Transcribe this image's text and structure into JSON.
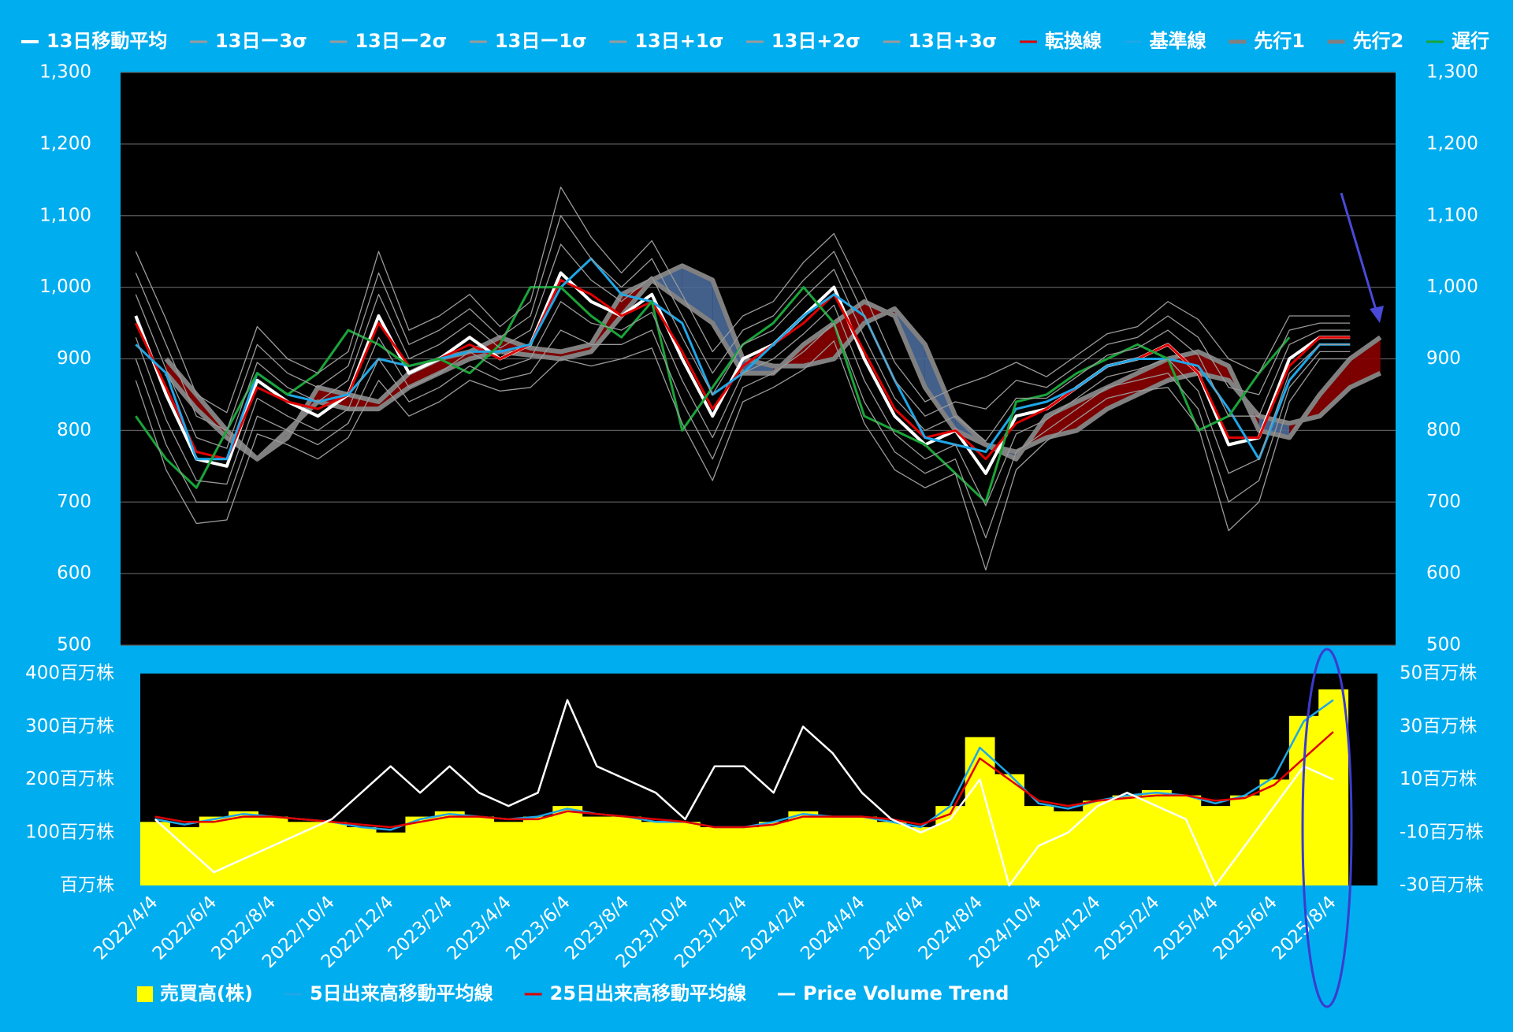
{
  "chart_data": [
    {
      "type": "ichimoku",
      "ylim": [
        500,
        1300
      ],
      "yticks": [
        500,
        600,
        700,
        800,
        900,
        {
          "value": 1000,
          "label": "1,000"
        },
        {
          "value": 1100,
          "label": "1,100"
        },
        {
          "value": 1200,
          "label": "1,200"
        },
        {
          "value": 1300,
          "label": "1,300"
        }
      ],
      "grid": true,
      "cloud_up_color": "#8b0000",
      "cloud_down_color": "#4a6a9a",
      "series": [
        {
          "name": "13日移動平均",
          "color": "#ffffff",
          "width": 4,
          "values": [
            960,
            850,
            760,
            750,
            870,
            840,
            820,
            850,
            960,
            880,
            900,
            930,
            900,
            920,
            1020,
            980,
            960,
            990,
            900,
            820,
            900,
            920,
            960,
            1000,
            900,
            820,
            780,
            800,
            740,
            820,
            830,
            860,
            890,
            900,
            920,
            880,
            780,
            790,
            900,
            930,
            930,
            null
          ]
        },
        {
          "name": "13日ー3σ",
          "color": "#9a9a9a",
          "width": 1.3,
          "values": [
            870,
            745,
            670,
            675,
            795,
            780,
            760,
            790,
            870,
            820,
            840,
            870,
            855,
            860,
            900,
            890,
            900,
            915,
            810,
            730,
            840,
            860,
            885,
            925,
            810,
            745,
            720,
            740,
            605,
            745,
            785,
            815,
            845,
            855,
            860,
            805,
            660,
            700,
            840,
            900,
            900,
            null
          ]
        },
        {
          "name": "13日ー2σ",
          "color": "#9a9a9a",
          "width": 1.3,
          "values": [
            900,
            780,
            700,
            700,
            820,
            800,
            780,
            810,
            900,
            840,
            860,
            890,
            870,
            880,
            940,
            920,
            920,
            940,
            840,
            760,
            860,
            880,
            910,
            950,
            840,
            770,
            740,
            760,
            650,
            770,
            800,
            830,
            860,
            870,
            880,
            830,
            700,
            730,
            860,
            910,
            910,
            null
          ]
        },
        {
          "name": "13日ー1σ",
          "color": "#9a9a9a",
          "width": 1.3,
          "values": [
            930,
            815,
            730,
            725,
            845,
            820,
            800,
            830,
            930,
            860,
            880,
            910,
            885,
            900,
            980,
            950,
            940,
            965,
            870,
            790,
            880,
            900,
            935,
            975,
            870,
            795,
            760,
            780,
            695,
            795,
            815,
            845,
            875,
            885,
            900,
            855,
            740,
            760,
            880,
            920,
            920,
            null
          ]
        },
        {
          "name": "13日+1σ",
          "color": "#9a9a9a",
          "width": 1.3,
          "values": [
            990,
            885,
            790,
            775,
            895,
            860,
            840,
            870,
            990,
            900,
            920,
            950,
            915,
            940,
            1060,
            1010,
            980,
            1015,
            930,
            850,
            920,
            940,
            985,
            1025,
            930,
            845,
            800,
            820,
            785,
            845,
            845,
            875,
            905,
            915,
            940,
            905,
            820,
            820,
            920,
            940,
            940,
            null
          ]
        },
        {
          "name": "13日+2σ",
          "color": "#9a9a9a",
          "width": 1.3,
          "values": [
            1020,
            920,
            820,
            800,
            920,
            880,
            860,
            890,
            1020,
            920,
            940,
            970,
            930,
            960,
            1100,
            1040,
            1000,
            1040,
            960,
            880,
            940,
            960,
            1010,
            1050,
            960,
            870,
            820,
            840,
            830,
            870,
            860,
            890,
            920,
            930,
            960,
            930,
            860,
            850,
            940,
            950,
            950,
            null
          ]
        },
        {
          "name": "13日+3σ",
          "color": "#9a9a9a",
          "width": 1.3,
          "values": [
            1050,
            955,
            850,
            825,
            945,
            900,
            880,
            910,
            1050,
            940,
            960,
            990,
            945,
            980,
            1140,
            1070,
            1020,
            1065,
            990,
            910,
            960,
            980,
            1035,
            1075,
            990,
            895,
            840,
            860,
            875,
            895,
            875,
            905,
            935,
            945,
            980,
            955,
            900,
            880,
            960,
            960,
            960,
            null
          ]
        },
        {
          "name": "転換線",
          "color": "#e00000",
          "width": 3,
          "values": [
            950,
            860,
            770,
            760,
            860,
            840,
            830,
            850,
            950,
            890,
            900,
            920,
            900,
            920,
            1010,
            990,
            960,
            980,
            910,
            830,
            890,
            920,
            950,
            990,
            910,
            830,
            790,
            800,
            760,
            810,
            830,
            860,
            890,
            900,
            920,
            880,
            790,
            790,
            890,
            930,
            930,
            null
          ]
        },
        {
          "name": "基準線",
          "color": "#1ea7e8",
          "width": 3,
          "values": [
            920,
            880,
            760,
            760,
            880,
            850,
            840,
            850,
            900,
            890,
            900,
            910,
            910,
            920,
            1000,
            1040,
            990,
            980,
            950,
            850,
            880,
            920,
            960,
            990,
            960,
            870,
            790,
            780,
            770,
            830,
            840,
            860,
            890,
            900,
            900,
            890,
            830,
            760,
            870,
            920,
            920,
            null
          ]
        },
        {
          "name": "先行1",
          "color": "#808080",
          "width": 6,
          "cloud": true,
          "values": [
            null,
            900,
            850,
            800,
            760,
            790,
            860,
            850,
            840,
            880,
            900,
            910,
            930,
            915,
            910,
            920,
            990,
            1010,
            980,
            950,
            880,
            880,
            920,
            950,
            980,
            960,
            860,
            800,
            780,
            760,
            820,
            840,
            860,
            880,
            900,
            910,
            890,
            800,
            790,
            850,
            900,
            930
          ]
        },
        {
          "name": "先行2",
          "color": "#808080",
          "width": 6,
          "cloud": true,
          "values": [
            null,
            880,
            830,
            790,
            760,
            800,
            840,
            830,
            830,
            860,
            880,
            900,
            910,
            905,
            900,
            910,
            960,
            1010,
            1030,
            1010,
            900,
            890,
            890,
            900,
            950,
            970,
            920,
            820,
            780,
            770,
            790,
            800,
            830,
            850,
            870,
            880,
            870,
            820,
            810,
            820,
            860,
            880
          ]
        },
        {
          "name": "遅行",
          "color": "#19a539",
          "width": 3,
          "values": [
            820,
            760,
            720,
            800,
            880,
            850,
            880,
            940,
            920,
            890,
            900,
            880,
            920,
            1000,
            1000,
            960,
            930,
            980,
            800,
            860,
            920,
            950,
            1000,
            950,
            820,
            800,
            780,
            740,
            700,
            840,
            850,
            880,
            900,
            920,
            900,
            800,
            820,
            880,
            930,
            null,
            null,
            null
          ]
        }
      ]
    },
    {
      "type": "bar",
      "categories": [
        "2022/4/4",
        null,
        "2022/6/4",
        null,
        "2022/8/4",
        null,
        "2022/10/4",
        null,
        "2022/12/4",
        null,
        "2023/2/4",
        null,
        "2023/4/4",
        null,
        "2023/6/4",
        null,
        "2023/8/4",
        null,
        "2023/10/4",
        null,
        "2023/12/4",
        null,
        "2024/2/4",
        null,
        "2024/4/4",
        null,
        "2024/6/4",
        null,
        "2024/8/4",
        null,
        "2024/10/4",
        null,
        "2024/12/4",
        null,
        "2025/2/4",
        null,
        "2025/4/4",
        null,
        "2025/6/4",
        null,
        "2025/8/4",
        null
      ],
      "ylim": [
        0,
        400
      ],
      "yticks": [
        {
          "value": 0,
          "label": "百万株"
        },
        {
          "value": 100,
          "label": "100百万株"
        },
        {
          "value": 200,
          "label": "200百万株"
        },
        {
          "value": 300,
          "label": "300百万株"
        },
        {
          "value": 400,
          "label": "400百万株"
        }
      ],
      "y2lim": [
        -30,
        50
      ],
      "y2ticks": [
        {
          "value": -30,
          "label": "-30百万株"
        },
        {
          "value": -10,
          "label": "-10百万株"
        },
        {
          "value": 10,
          "label": "10百万株"
        },
        {
          "value": 30,
          "label": "30百万株"
        },
        {
          "value": 50,
          "label": "50百万株"
        }
      ],
      "series": [
        {
          "name": "売買高(株)",
          "type": "bar",
          "color": "#ffff00",
          "values": [
            120,
            110,
            130,
            140,
            130,
            120,
            120,
            110,
            100,
            130,
            140,
            130,
            120,
            130,
            150,
            130,
            130,
            120,
            120,
            110,
            110,
            120,
            140,
            130,
            130,
            120,
            110,
            150,
            280,
            210,
            150,
            140,
            160,
            170,
            180,
            170,
            150,
            170,
            200,
            320,
            370,
            null
          ]
        },
        {
          "name": "5日出来高移動平均線",
          "type": "line",
          "color": "#1ea7e8",
          "values": [
            125,
            115,
            125,
            135,
            130,
            125,
            120,
            110,
            105,
            125,
            135,
            130,
            125,
            130,
            145,
            135,
            130,
            120,
            120,
            110,
            110,
            120,
            135,
            130,
            130,
            120,
            110,
            150,
            260,
            210,
            155,
            145,
            160,
            170,
            175,
            170,
            155,
            170,
            205,
            310,
            350,
            null
          ]
        },
        {
          "name": "25日出来高移動平均線",
          "type": "line",
          "color": "#e00000",
          "values": [
            130,
            120,
            120,
            130,
            130,
            125,
            120,
            115,
            110,
            120,
            130,
            130,
            125,
            125,
            140,
            135,
            130,
            125,
            120,
            110,
            110,
            115,
            130,
            130,
            130,
            125,
            115,
            135,
            240,
            200,
            160,
            150,
            160,
            165,
            170,
            170,
            160,
            165,
            190,
            240,
            290,
            null
          ]
        },
        {
          "name": "Price Volume Trend",
          "type": "line",
          "axis": "y2",
          "color": "#ffffff",
          "values": [
            -5,
            -15,
            -25,
            -20,
            -15,
            -10,
            -5,
            5,
            15,
            5,
            15,
            5,
            0,
            5,
            40,
            15,
            10,
            5,
            -5,
            15,
            15,
            5,
            30,
            20,
            5,
            -5,
            -10,
            -5,
            10,
            -30,
            -15,
            -10,
            0,
            5,
            0,
            -5,
            -30,
            -15,
            0,
            15,
            10,
            null
          ]
        }
      ]
    }
  ]
}
